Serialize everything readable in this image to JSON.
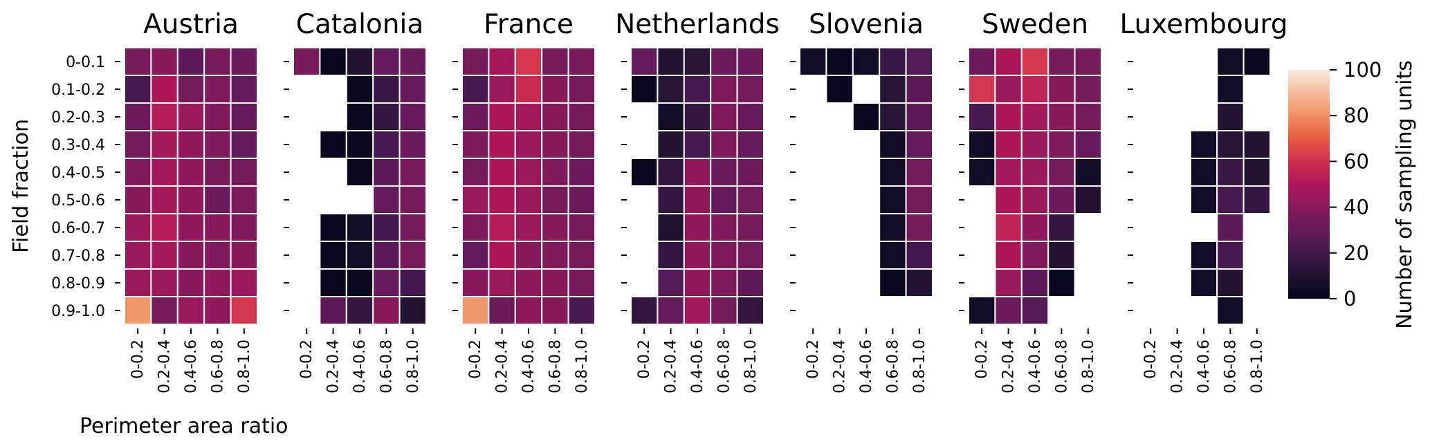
{
  "chart_data": {
    "type": "heatmap",
    "xlabel": "Perimeter area ratio",
    "ylabel": "Field fraction",
    "x_categories": [
      "0-0.2",
      "0.2-0.4",
      "0.4-0.6",
      "0.6-0.8",
      "0.8-1.0"
    ],
    "y_categories": [
      "0-0.1",
      "0.1-0.2",
      "0.2-0.3",
      "0.3-0.4",
      "0.4-0.5",
      "0.5-0.6",
      "0.6-0.7",
      "0.7-0.8",
      "0.8-0.9",
      "0.9-1.0"
    ],
    "colorbar": {
      "label": "Number of sampling units",
      "range": [
        0,
        100
      ],
      "ticks": [
        0,
        20,
        40,
        60,
        80,
        100
      ]
    },
    "panels": [
      {
        "title": "Austria",
        "values": [
          [
            35,
            40,
            28,
            35,
            32
          ],
          [
            22,
            50,
            35,
            38,
            30
          ],
          [
            33,
            52,
            45,
            38,
            30
          ],
          [
            35,
            48,
            42,
            38,
            30
          ],
          [
            38,
            48,
            42,
            35,
            35
          ],
          [
            40,
            48,
            42,
            32,
            38
          ],
          [
            45,
            52,
            42,
            40,
            38
          ],
          [
            45,
            48,
            40,
            38,
            40
          ],
          [
            45,
            45,
            40,
            42,
            45
          ],
          [
            82,
            35,
            45,
            42,
            62
          ]
        ]
      },
      {
        "title": "Catalonia",
        "values": [
          [
            35,
            2,
            10,
            30,
            32
          ],
          [
            null,
            null,
            2,
            18,
            30
          ],
          [
            null,
            null,
            2,
            15,
            30
          ],
          [
            null,
            2,
            2,
            22,
            32
          ],
          [
            null,
            null,
            2,
            28,
            35
          ],
          [
            null,
            null,
            null,
            30,
            35
          ],
          [
            null,
            2,
            5,
            20,
            35
          ],
          [
            null,
            2,
            5,
            28,
            35
          ],
          [
            null,
            2,
            2,
            30,
            20
          ],
          [
            null,
            28,
            15,
            40,
            10
          ]
        ]
      },
      {
        "title": "France",
        "values": [
          [
            35,
            48,
            62,
            35,
            35
          ],
          [
            22,
            45,
            58,
            40,
            35
          ],
          [
            32,
            50,
            48,
            40,
            35
          ],
          [
            38,
            50,
            45,
            40,
            35
          ],
          [
            35,
            50,
            45,
            38,
            32
          ],
          [
            45,
            50,
            45,
            35,
            32
          ],
          [
            38,
            52,
            45,
            40,
            35
          ],
          [
            30,
            50,
            40,
            38,
            35
          ],
          [
            40,
            45,
            42,
            40,
            35
          ],
          [
            82,
            32,
            42,
            40,
            22
          ]
        ]
      },
      {
        "title": "Netherlands",
        "values": [
          [
            30,
            10,
            12,
            32,
            32
          ],
          [
            2,
            12,
            22,
            38,
            35
          ],
          [
            null,
            5,
            15,
            38,
            30
          ],
          [
            null,
            10,
            22,
            38,
            30
          ],
          [
            2,
            15,
            42,
            32,
            32
          ],
          [
            null,
            15,
            42,
            30,
            35
          ],
          [
            null,
            8,
            42,
            38,
            35
          ],
          [
            null,
            15,
            42,
            38,
            35
          ],
          [
            null,
            25,
            42,
            38,
            28
          ],
          [
            15,
            30,
            48,
            35,
            15
          ]
        ]
      },
      {
        "title": "Slovenia",
        "values": [
          [
            5,
            2,
            5,
            18,
            25
          ],
          [
            null,
            2,
            null,
            12,
            28
          ],
          [
            null,
            null,
            2,
            12,
            28
          ],
          [
            null,
            null,
            null,
            5,
            30
          ],
          [
            null,
            null,
            null,
            5,
            35
          ],
          [
            null,
            null,
            null,
            5,
            35
          ],
          [
            null,
            null,
            null,
            5,
            35
          ],
          [
            null,
            null,
            null,
            5,
            20
          ],
          [
            null,
            null,
            null,
            2,
            10
          ],
          [
            null,
            null,
            null,
            null,
            null
          ]
        ]
      },
      {
        "title": "Sweden",
        "values": [
          [
            32,
            50,
            62,
            35,
            35
          ],
          [
            62,
            45,
            55,
            40,
            35
          ],
          [
            22,
            50,
            48,
            40,
            35
          ],
          [
            5,
            50,
            45,
            38,
            30
          ],
          [
            5,
            48,
            45,
            35,
            5
          ],
          [
            null,
            50,
            45,
            32,
            10
          ],
          [
            null,
            55,
            42,
            15,
            null
          ],
          [
            null,
            50,
            38,
            10,
            null
          ],
          [
            null,
            45,
            28,
            2,
            null
          ],
          [
            5,
            32,
            25,
            null,
            null
          ]
        ]
      },
      {
        "title": "Luxembourg",
        "values": [
          [
            null,
            null,
            null,
            5,
            2
          ],
          [
            null,
            null,
            null,
            5,
            null
          ],
          [
            null,
            null,
            null,
            10,
            null
          ],
          [
            null,
            null,
            5,
            12,
            10
          ],
          [
            null,
            null,
            5,
            18,
            10
          ],
          [
            null,
            null,
            5,
            22,
            15
          ],
          [
            null,
            null,
            null,
            28,
            null
          ],
          [
            null,
            null,
            5,
            22,
            null
          ],
          [
            null,
            null,
            5,
            10,
            null
          ],
          [
            null,
            null,
            null,
            5,
            null
          ]
        ]
      }
    ]
  }
}
